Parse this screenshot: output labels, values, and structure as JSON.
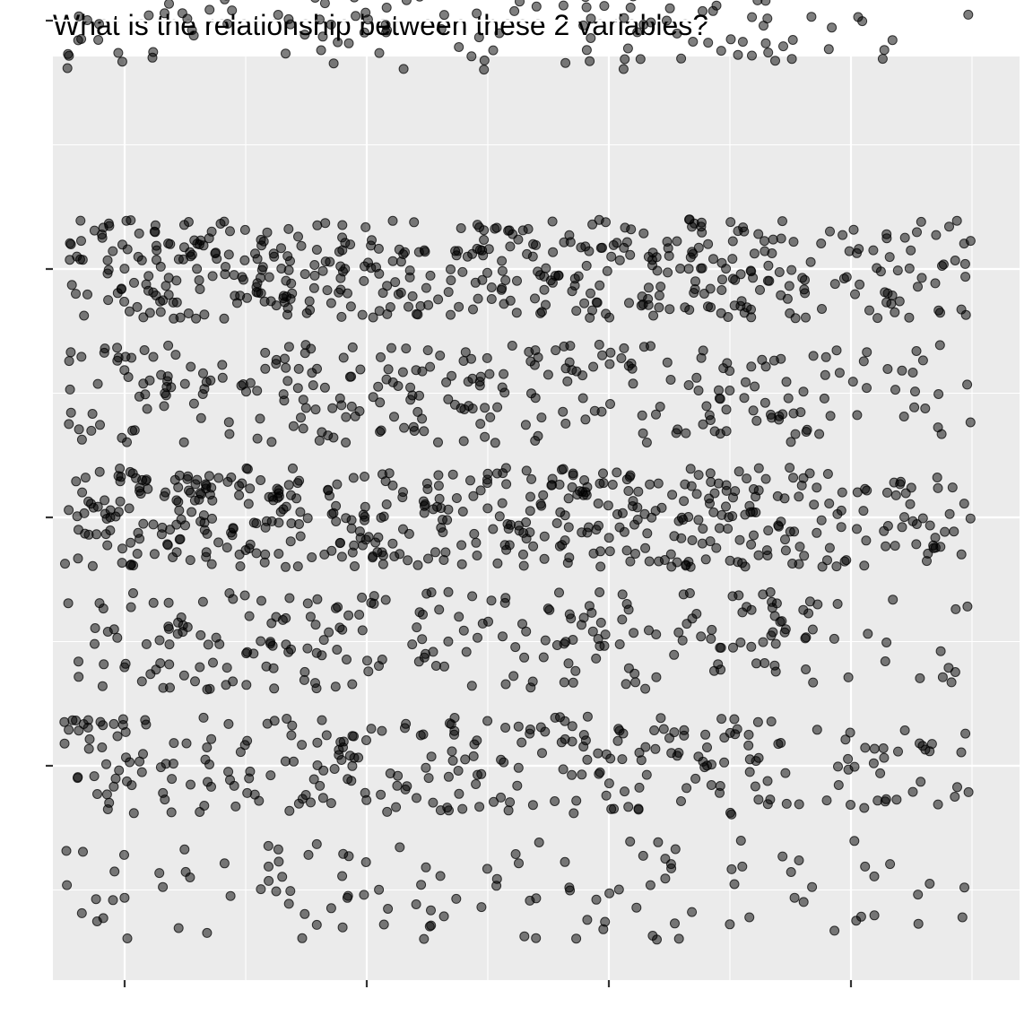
{
  "title": "What is the relationship between these 2 variables?",
  "colors": {
    "panel_background": "#EBEBEB",
    "grid_line": "#FFFFFF",
    "point": "#000000",
    "tick": "#333333"
  },
  "chart_data": {
    "type": "scatter",
    "title": "What is the relationship between these 2 variables?",
    "xlabel": "",
    "ylabel": "",
    "x_tick_labels": [],
    "y_tick_labels": [],
    "grid": true,
    "point_opacity": 0.5,
    "xlim": [
      0.5,
      4.5
    ],
    "ylim": [
      0.5,
      4.5
    ],
    "x_ticks": [
      1,
      2,
      3,
      4
    ],
    "y_ticks": [
      1,
      2,
      3,
      4
    ],
    "y_bands": [
      {
        "center": 4.0,
        "count": 160
      },
      {
        "center": 3.0,
        "count": 470
      },
      {
        "center": 2.5,
        "count": 290
      },
      {
        "center": 2.0,
        "count": 500
      },
      {
        "center": 1.5,
        "count": 250
      },
      {
        "center": 1.0,
        "count": 300
      },
      {
        "center": 0.5,
        "count": 120
      }
    ],
    "band_spread": 0.2,
    "x_range": [
      0.75,
      4.5
    ],
    "relationship": "none apparent"
  }
}
